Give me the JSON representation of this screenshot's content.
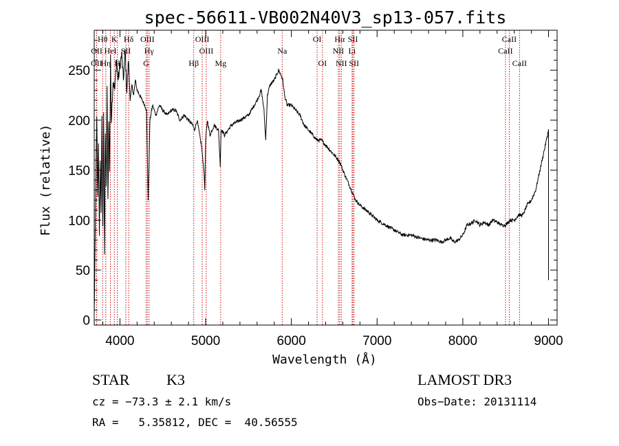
{
  "chart_data": {
    "type": "line",
    "title": "spec-56611-VB002N40V3_sp13-057.fits",
    "xlabel": "Wavelength (Å)",
    "ylabel": "Flux (relative)",
    "xlim": [
      3700,
      9100
    ],
    "ylim": [
      -5,
      290
    ],
    "xticks": [
      4000,
      5000,
      6000,
      7000,
      8000,
      9000
    ],
    "yticks": [
      0,
      50,
      100,
      150,
      200,
      250
    ],
    "series": [
      {
        "name": "spectrum",
        "x": [
          3700,
          3710,
          3720,
          3730,
          3740,
          3750,
          3760,
          3770,
          3780,
          3790,
          3800,
          3810,
          3820,
          3830,
          3840,
          3850,
          3860,
          3870,
          3880,
          3890,
          3900,
          3920,
          3940,
          3960,
          3980,
          4000,
          4020,
          4040,
          4060,
          4080,
          4100,
          4120,
          4140,
          4160,
          4180,
          4200,
          4230,
          4260,
          4290,
          4310,
          4330,
          4350,
          4380,
          4420,
          4460,
          4500,
          4550,
          4600,
          4650,
          4700,
          4750,
          4800,
          4850,
          4870,
          4900,
          4950,
          4980,
          4990,
          5000,
          5010,
          5020,
          5050,
          5100,
          5150,
          5170,
          5180,
          5190,
          5220,
          5300,
          5400,
          5500,
          5600,
          5650,
          5680,
          5700,
          5720,
          5750,
          5800,
          5850,
          5880,
          5900,
          5920,
          5950,
          6000,
          6050,
          6100,
          6150,
          6200,
          6250,
          6300,
          6350,
          6400,
          6450,
          6500,
          6550,
          6580,
          6600,
          6650,
          6700,
          6750,
          6800,
          6900,
          7000,
          7100,
          7200,
          7300,
          7400,
          7500,
          7600,
          7700,
          7750,
          7800,
          7850,
          7900,
          7950,
          8000,
          8050,
          8100,
          8150,
          8200,
          8250,
          8300,
          8350,
          8400,
          8450,
          8500,
          8550,
          8600,
          8650,
          8700,
          8750,
          8800,
          8850,
          8900,
          8950,
          9000,
          9000
        ],
        "y": [
          5,
          70,
          150,
          200,
          120,
          180,
          80,
          160,
          110,
          200,
          90,
          210,
          60,
          190,
          130,
          230,
          120,
          200,
          150,
          260,
          200,
          240,
          230,
          260,
          240,
          255,
          265,
          240,
          270,
          230,
          260,
          220,
          235,
          225,
          240,
          230,
          225,
          220,
          215,
          210,
          120,
          200,
          215,
          205,
          215,
          210,
          205,
          210,
          210,
          200,
          205,
          200,
          195,
          190,
          200,
          175,
          150,
          130,
          180,
          190,
          200,
          185,
          195,
          190,
          155,
          190,
          190,
          185,
          195,
          200,
          205,
          220,
          230,
          210,
          180,
          225,
          235,
          240,
          250,
          245,
          240,
          225,
          215,
          215,
          210,
          205,
          195,
          190,
          185,
          180,
          180,
          175,
          170,
          165,
          160,
          155,
          150,
          140,
          130,
          120,
          115,
          108,
          100,
          95,
          90,
          85,
          85,
          82,
          80,
          80,
          78,
          80,
          82,
          78,
          80,
          85,
          95,
          97,
          100,
          95,
          98,
          95,
          100,
          98,
          95,
          95,
          100,
          100,
          105,
          105,
          115,
          120,
          130,
          150,
          170,
          190,
          40
        ]
      }
    ],
    "spectral_lines": [
      {
        "label": "OII",
        "wavelength": 3727,
        "row": 2
      },
      {
        "label": "OII",
        "wavelength": 3729,
        "row": 1
      },
      {
        "label": "Hθ",
        "wavelength": 3798,
        "row": 0
      },
      {
        "label": "Hη",
        "wavelength": 3835,
        "row": 2
      },
      {
        "label": "HeI",
        "wavelength": 3889,
        "row": 1
      },
      {
        "label": "K",
        "wavelength": 3934,
        "row": 0
      },
      {
        "label": "H",
        "wavelength": 3969,
        "row": 2
      },
      {
        "label": "SII",
        "wavelength": 4069,
        "row": 1
      },
      {
        "label": "Hδ",
        "wavelength": 4102,
        "row": 0
      },
      {
        "label": "OIII",
        "wavelength": 4320,
        "row": 0
      },
      {
        "label": "Hγ",
        "wavelength": 4340,
        "row": 1
      },
      {
        "label": "G",
        "wavelength": 4305,
        "row": 2
      },
      {
        "label": "Hβ",
        "wavelength": 4861,
        "row": 2
      },
      {
        "label": "OIII",
        "wavelength": 4960,
        "row": 0
      },
      {
        "label": "OIII",
        "wavelength": 5007,
        "row": 1
      },
      {
        "label": "Mg",
        "wavelength": 5175,
        "row": 2
      },
      {
        "label": "Na",
        "wavelength": 5893,
        "row": 1
      },
      {
        "label": "OI",
        "wavelength": 6300,
        "row": 0
      },
      {
        "label": "OI",
        "wavelength": 6363,
        "row": 2
      },
      {
        "label": "Hα",
        "wavelength": 6563,
        "row": 0
      },
      {
        "label": "NII",
        "wavelength": 6548,
        "row": 1
      },
      {
        "label": "NII",
        "wavelength": 6583,
        "row": 2
      },
      {
        "label": "SII",
        "wavelength": 6717,
        "row": 0
      },
      {
        "label": "Li",
        "wavelength": 6708,
        "row": 1
      },
      {
        "label": "SII",
        "wavelength": 6731,
        "row": 2
      },
      {
        "label": "CaII",
        "wavelength": 8498,
        "row": 1
      },
      {
        "label": "CaII",
        "wavelength": 8542,
        "row": 0
      },
      {
        "label": "CaII",
        "wavelength": 8662,
        "row": 2
      }
    ]
  },
  "info": {
    "class": "STAR",
    "subclass": "K3",
    "survey": "LAMOST DR3",
    "cz": "cz = −73.3 ± 2.1 km/s",
    "obs_date": "Obs−Date: 20131114",
    "radec": "RA =   5.35812, DEC =  40.56555"
  },
  "colors": {
    "line": "#000000",
    "marker": "#cc0000"
  }
}
